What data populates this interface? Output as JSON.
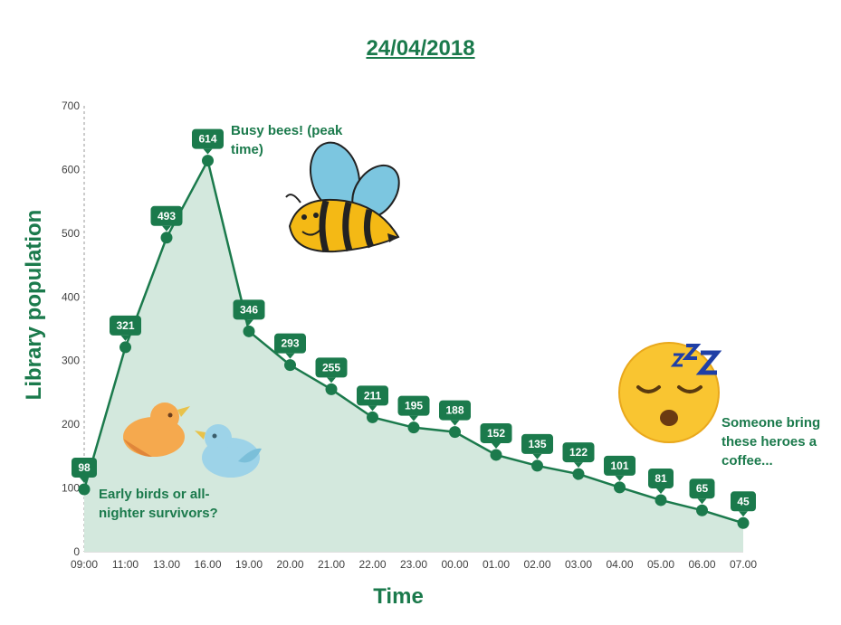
{
  "chart_data": {
    "type": "area",
    "title": "24/04/2018",
    "xlabel": "Time",
    "ylabel": "Library population",
    "ylim": [
      0,
      700
    ],
    "yticks": [
      0,
      100,
      200,
      300,
      400,
      500,
      600,
      700
    ],
    "categories": [
      "09:00",
      "11:00",
      "13.00",
      "16.00",
      "19.00",
      "20.00",
      "21.00",
      "22.00",
      "23.00",
      "00.00",
      "01.00",
      "02.00",
      "03.00",
      "04.00",
      "05.00",
      "06.00",
      "07.00"
    ],
    "values": [
      98,
      321,
      493,
      614,
      346,
      293,
      255,
      211,
      195,
      188,
      152,
      135,
      122,
      101,
      81,
      65,
      45
    ],
    "grid": false,
    "legend": "none",
    "annotations": [
      "Early birds or all-nighter survivors?",
      "Busy bees! (peak time)",
      "Someone bring these heroes a coffee..."
    ]
  },
  "colors": {
    "line": "#1b7a4c",
    "fill": "#d3e8dd",
    "text": "#1b7a4c"
  },
  "icons": [
    "bird-icon",
    "bee-icon",
    "sleeping-face-icon"
  ]
}
